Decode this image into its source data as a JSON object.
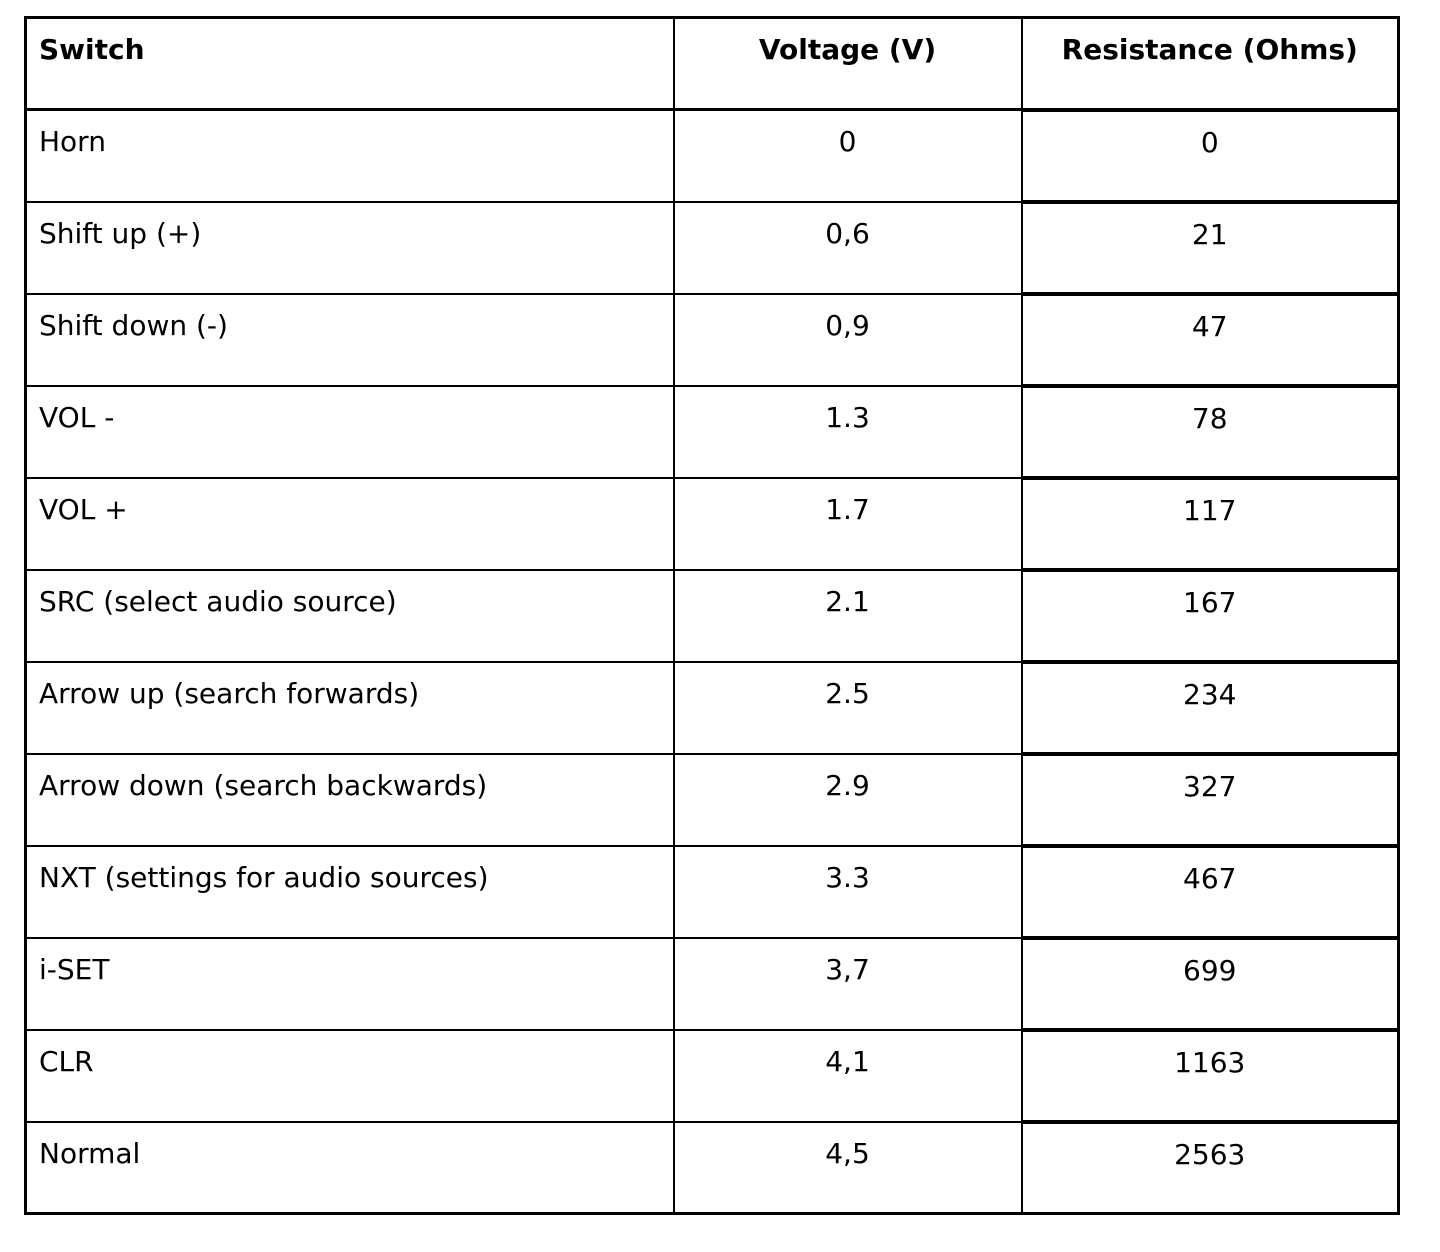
{
  "table": {
    "columns": [
      {
        "key": "switch",
        "label": "Switch"
      },
      {
        "key": "voltage",
        "label": "Voltage (V)"
      },
      {
        "key": "resistance",
        "label": "Resistance (Ohms)"
      }
    ],
    "rows": [
      {
        "switch": "Horn",
        "voltage": "0",
        "resistance": "0"
      },
      {
        "switch": "Shift up (+)",
        "voltage": "0,6",
        "resistance": "21"
      },
      {
        "switch": "Shift down (-)",
        "voltage": "0,9",
        "resistance": "47"
      },
      {
        "switch": "VOL -",
        "voltage": "1.3",
        "resistance": "78"
      },
      {
        "switch": "VOL +",
        "voltage": "1.7",
        "resistance": "117"
      },
      {
        "switch": "SRC (select audio source)",
        "voltage": "2.1",
        "resistance": "167"
      },
      {
        "switch": "Arrow up (search forwards)",
        "voltage": "2.5",
        "resistance": "234"
      },
      {
        "switch": "Arrow down (search backwards)",
        "voltage": "2.9",
        "resistance": "327"
      },
      {
        "switch": "NXT (settings for audio sources)",
        "voltage": "3.3",
        "resistance": "467"
      },
      {
        "switch": "i-SET",
        "voltage": "3,7",
        "resistance": "699"
      },
      {
        "switch": "CLR",
        "voltage": "4,1",
        "resistance": "1163"
      },
      {
        "switch": "Normal",
        "voltage": "4,5",
        "resistance": "2563"
      }
    ]
  },
  "chart_data": {
    "type": "table",
    "title": "",
    "columns": [
      "Switch",
      "Voltage (V)",
      "Resistance (Ohms)"
    ],
    "rows": [
      [
        "Horn",
        "0",
        "0"
      ],
      [
        "Shift up (+)",
        "0,6",
        "21"
      ],
      [
        "Shift down (-)",
        "0,9",
        "47"
      ],
      [
        "VOL -",
        "1.3",
        "78"
      ],
      [
        "VOL +",
        "1.7",
        "117"
      ],
      [
        "SRC (select audio source)",
        "2.1",
        "167"
      ],
      [
        "Arrow up (search forwards)",
        "2.5",
        "234"
      ],
      [
        "Arrow down (search backwards)",
        "2.9",
        "327"
      ],
      [
        "NXT (settings for audio sources)",
        "3.3",
        "467"
      ],
      [
        "i-SET",
        "3,7",
        "699"
      ],
      [
        "CLR",
        "4,1",
        "1163"
      ],
      [
        "Normal",
        "4,5",
        "2563"
      ]
    ]
  }
}
